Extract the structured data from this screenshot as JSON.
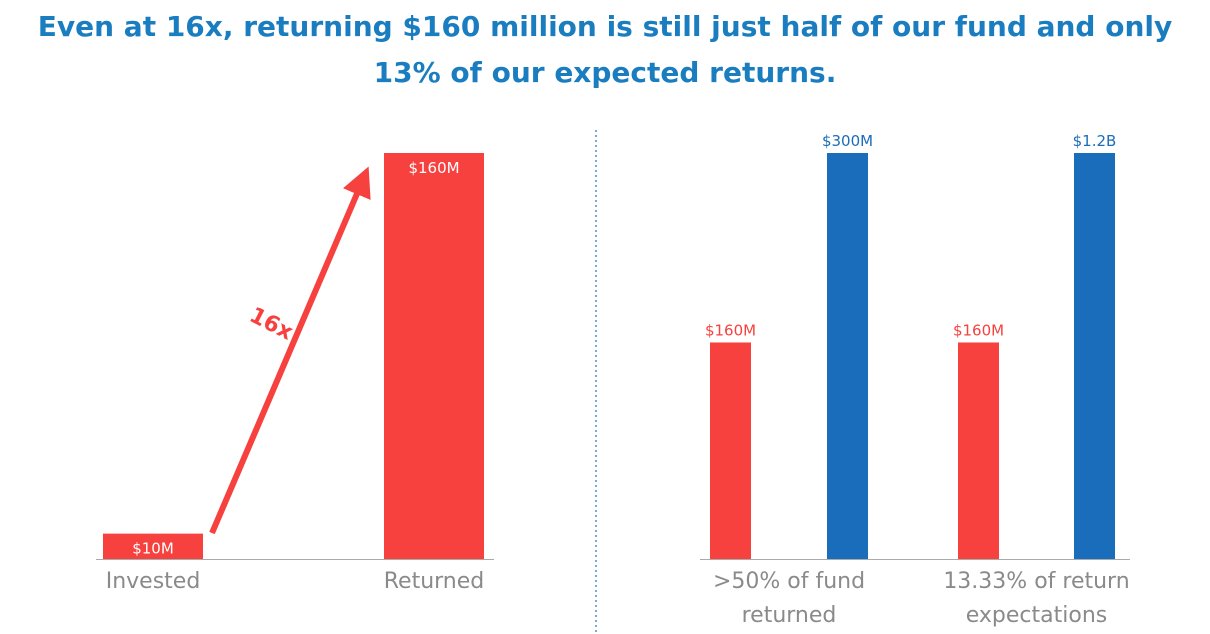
{
  "title_line1": "Even at 16x, returning $160 million is still just half of our fund and only",
  "title_line2": "13% of our expected returns.",
  "colors": {
    "red": "#f7413e",
    "blue": "#1a6dba",
    "title": "#1a7dc0",
    "axis_text": "#8a8a8a",
    "divider": "#4a90c8"
  },
  "chart_data": [
    {
      "type": "bar",
      "categories": [
        "Invested",
        "Returned"
      ],
      "values": [
        10,
        160
      ],
      "data_labels": [
        "$10M",
        "$160M"
      ],
      "annotation": "16x",
      "unit": "$M"
    },
    {
      "type": "bar",
      "categories": [
        ">50% of fund returned",
        "13.33% of return expectations"
      ],
      "category_lines": [
        [
          ">50% of fund",
          "returned"
        ],
        [
          "13.33% of return",
          "expectations"
        ]
      ],
      "series": [
        {
          "values": [
            160,
            160
          ],
          "data_labels": [
            "$160M",
            "$160M"
          ],
          "color": "#f7413e"
        },
        {
          "values": [
            300,
            1200
          ],
          "data_labels": [
            "$300M",
            "$1.2B"
          ],
          "color": "#1a6dba"
        }
      ],
      "unit": "$M"
    }
  ]
}
